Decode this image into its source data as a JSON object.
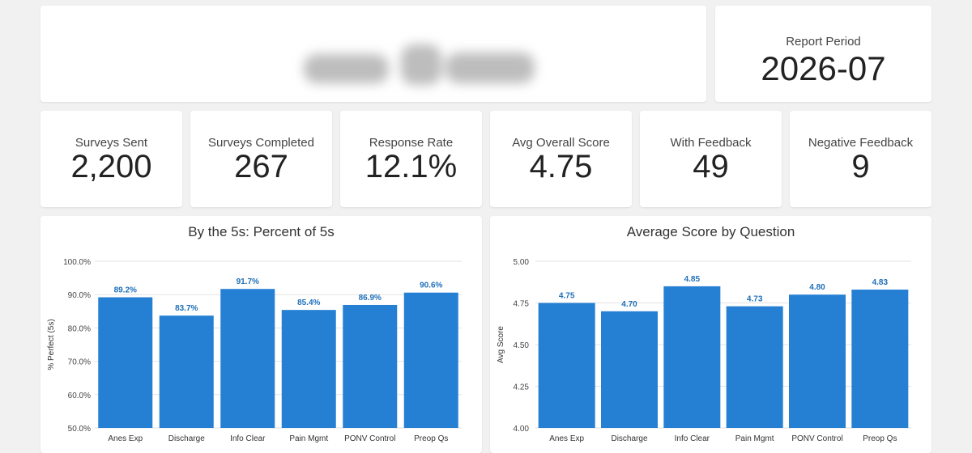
{
  "header": {
    "report_period_label": "Report Period",
    "report_period_value": "2026-07"
  },
  "kpis": [
    {
      "label": "Surveys Sent",
      "value": "2,200"
    },
    {
      "label": "Surveys Completed",
      "value": "267"
    },
    {
      "label": "Response Rate",
      "value": "12.1%"
    },
    {
      "label": "Avg Overall Score",
      "value": "4.75"
    },
    {
      "label": "With Feedback",
      "value": "49"
    },
    {
      "label": "Negative Feedback",
      "value": "9"
    }
  ],
  "colors": {
    "bar": "#2580d4",
    "label": "#1f6fb8",
    "grid": "#e2e2e2"
  },
  "chart_data": [
    {
      "type": "bar",
      "title": "By the 5s: Percent of 5s",
      "xlabel": "",
      "ylabel": "% Perfect (5s)",
      "ylim": [
        50,
        100
      ],
      "yticks": [
        50,
        60,
        70,
        80,
        90,
        100
      ],
      "ytick_labels": [
        "50.0%",
        "60.0%",
        "70.0%",
        "80.0%",
        "90.0%",
        "100.0%"
      ],
      "categories": [
        "Anes Exp",
        "Discharge",
        "Info Clear",
        "Pain Mgmt",
        "PONV Control",
        "Preop Qs"
      ],
      "values": [
        89.2,
        83.7,
        91.7,
        85.4,
        86.9,
        90.6
      ],
      "value_labels": [
        "89.2%",
        "83.7%",
        "91.7%",
        "85.4%",
        "86.9%",
        "90.6%"
      ],
      "grid": true,
      "legend": "none"
    },
    {
      "type": "bar",
      "title": "Average Score by Question",
      "xlabel": "",
      "ylabel": "Avg Score",
      "ylim": [
        4.0,
        5.0
      ],
      "yticks": [
        4.0,
        4.25,
        4.5,
        4.75,
        5.0
      ],
      "ytick_labels": [
        "4.00",
        "4.25",
        "4.50",
        "4.75",
        "5.00"
      ],
      "categories": [
        "Anes Exp",
        "Discharge",
        "Info Clear",
        "Pain Mgmt",
        "PONV Control",
        "Preop Qs"
      ],
      "values": [
        4.75,
        4.7,
        4.85,
        4.73,
        4.8,
        4.83
      ],
      "value_labels": [
        "4.75",
        "4.70",
        "4.85",
        "4.73",
        "4.80",
        "4.83"
      ],
      "grid": true,
      "legend": "none"
    }
  ]
}
